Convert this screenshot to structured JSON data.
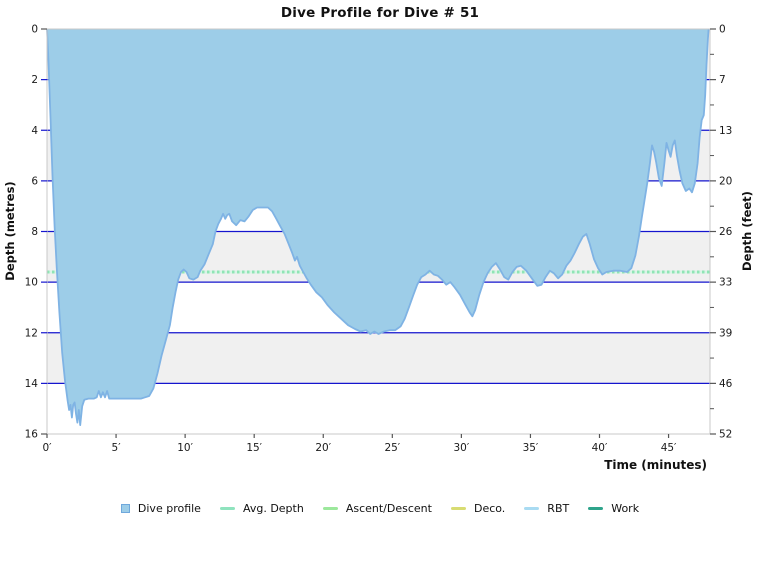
{
  "chart_data": {
    "type": "area",
    "title": "Dive Profile for Dive # 51",
    "xlabel": "Time (minutes)",
    "ylabel_left": "Depth (metres)",
    "ylabel_right": "Depth (feet)",
    "xlim": [
      0,
      48
    ],
    "ylim": [
      0,
      16
    ],
    "y_axis_inverted_note": "depth increases downward",
    "x_ticks": [
      0,
      5,
      10,
      15,
      20,
      25,
      30,
      35,
      40,
      45
    ],
    "x_tick_suffix": "′",
    "y_ticks_m": [
      0,
      2,
      4,
      6,
      8,
      10,
      12,
      14,
      16
    ],
    "y_tick_labels_feet": [
      "0",
      "7",
      "13",
      "20",
      "26",
      "33",
      "39",
      "46",
      "52"
    ],
    "y_minor_ticks_m": [
      1,
      3,
      5,
      7,
      9,
      11,
      13,
      15
    ],
    "grid_depths_m": [
      2,
      4,
      6,
      8,
      10,
      12,
      14
    ],
    "bands_m": [
      [
        0,
        2
      ],
      [
        4,
        6
      ],
      [
        8,
        10
      ],
      [
        12,
        14
      ]
    ],
    "avg_depth_m": 9.6,
    "max_depth_m": 15.7,
    "duration_min": 48,
    "colors": {
      "profile_fill": "#9DCDE8",
      "profile_stroke": "#7FB3E4",
      "grid_line": "#1515CE",
      "avg_depth_line": "#8FE5B5",
      "band_gray": "#F0F0F0",
      "plot_border": "#C9C9C9",
      "tick": "#555555"
    },
    "legend": [
      {
        "label": "Dive profile",
        "type": "area",
        "color": "#9DCDE8",
        "border": "#6FA8DC"
      },
      {
        "label": "Avg. Depth",
        "type": "line",
        "color": "#8FE3BE"
      },
      {
        "label": "Ascent/Descent",
        "type": "line",
        "color": "#9CE89C"
      },
      {
        "label": "Deco.",
        "type": "line",
        "color": "#D8DC72"
      },
      {
        "label": "RBT",
        "type": "line",
        "color": "#A9DBF2"
      },
      {
        "label": "Work",
        "type": "line",
        "color": "#2FA48B"
      }
    ],
    "profile_points": [
      [
        0,
        0
      ],
      [
        0.1,
        1.2
      ],
      [
        0.25,
        3.5
      ],
      [
        0.4,
        5.8
      ],
      [
        0.55,
        7.8
      ],
      [
        0.7,
        9.4
      ],
      [
        0.9,
        11.2
      ],
      [
        1.1,
        12.8
      ],
      [
        1.3,
        13.9
      ],
      [
        1.5,
        14.7
      ],
      [
        1.6,
        15.05
      ],
      [
        1.7,
        14.85
      ],
      [
        1.8,
        15.35
      ],
      [
        1.9,
        14.85
      ],
      [
        2.0,
        14.75
      ],
      [
        2.1,
        15.2
      ],
      [
        2.2,
        15.55
      ],
      [
        2.3,
        15.05
      ],
      [
        2.4,
        15.65
      ],
      [
        2.55,
        14.9
      ],
      [
        2.7,
        14.65
      ],
      [
        3.0,
        14.6
      ],
      [
        3.4,
        14.6
      ],
      [
        3.6,
        14.55
      ],
      [
        3.75,
        14.3
      ],
      [
        3.9,
        14.55
      ],
      [
        4.05,
        14.35
      ],
      [
        4.2,
        14.55
      ],
      [
        4.35,
        14.3
      ],
      [
        4.5,
        14.6
      ],
      [
        4.8,
        14.6
      ],
      [
        5.2,
        14.6
      ],
      [
        5.6,
        14.6
      ],
      [
        6.0,
        14.6
      ],
      [
        6.4,
        14.6
      ],
      [
        6.8,
        14.6
      ],
      [
        7.1,
        14.55
      ],
      [
        7.4,
        14.5
      ],
      [
        7.7,
        14.2
      ],
      [
        8.0,
        13.6
      ],
      [
        8.3,
        12.9
      ],
      [
        8.6,
        12.3
      ],
      [
        8.9,
        11.7
      ],
      [
        9.1,
        11.0
      ],
      [
        9.3,
        10.4
      ],
      [
        9.5,
        9.9
      ],
      [
        9.7,
        9.6
      ],
      [
        9.9,
        9.5
      ],
      [
        10.1,
        9.6
      ],
      [
        10.3,
        9.85
      ],
      [
        10.6,
        9.9
      ],
      [
        10.9,
        9.8
      ],
      [
        11.1,
        9.55
      ],
      [
        11.4,
        9.3
      ],
      [
        11.7,
        8.9
      ],
      [
        12.0,
        8.5
      ],
      [
        12.2,
        8.0
      ],
      [
        12.4,
        7.7
      ],
      [
        12.6,
        7.5
      ],
      [
        12.75,
        7.3
      ],
      [
        12.9,
        7.5
      ],
      [
        13.05,
        7.35
      ],
      [
        13.2,
        7.3
      ],
      [
        13.4,
        7.6
      ],
      [
        13.7,
        7.75
      ],
      [
        14.0,
        7.55
      ],
      [
        14.3,
        7.6
      ],
      [
        14.6,
        7.4
      ],
      [
        14.9,
        7.15
      ],
      [
        15.2,
        7.05
      ],
      [
        15.6,
        7.05
      ],
      [
        16.0,
        7.05
      ],
      [
        16.3,
        7.2
      ],
      [
        16.6,
        7.5
      ],
      [
        16.9,
        7.8
      ],
      [
        17.2,
        8.1
      ],
      [
        17.5,
        8.5
      ],
      [
        17.75,
        8.85
      ],
      [
        17.95,
        9.15
      ],
      [
        18.1,
        9.0
      ],
      [
        18.3,
        9.35
      ],
      [
        18.55,
        9.6
      ],
      [
        18.8,
        9.85
      ],
      [
        19.1,
        10.1
      ],
      [
        19.5,
        10.4
      ],
      [
        19.9,
        10.6
      ],
      [
        20.3,
        10.9
      ],
      [
        20.8,
        11.2
      ],
      [
        21.3,
        11.45
      ],
      [
        21.8,
        11.7
      ],
      [
        22.3,
        11.85
      ],
      [
        22.7,
        11.95
      ],
      [
        23.1,
        11.9
      ],
      [
        23.4,
        12.05
      ],
      [
        23.7,
        11.95
      ],
      [
        24.0,
        12.05
      ],
      [
        24.4,
        11.95
      ],
      [
        24.8,
        11.9
      ],
      [
        25.2,
        11.9
      ],
      [
        25.6,
        11.75
      ],
      [
        25.9,
        11.45
      ],
      [
        26.2,
        11.0
      ],
      [
        26.5,
        10.55
      ],
      [
        26.8,
        10.1
      ],
      [
        27.1,
        9.8
      ],
      [
        27.4,
        9.7
      ],
      [
        27.7,
        9.55
      ],
      [
        28.0,
        9.7
      ],
      [
        28.3,
        9.75
      ],
      [
        28.6,
        9.9
      ],
      [
        28.9,
        10.1
      ],
      [
        29.2,
        10.0
      ],
      [
        29.5,
        10.2
      ],
      [
        29.9,
        10.5
      ],
      [
        30.3,
        10.9
      ],
      [
        30.6,
        11.2
      ],
      [
        30.8,
        11.35
      ],
      [
        31.0,
        11.1
      ],
      [
        31.3,
        10.5
      ],
      [
        31.6,
        10.0
      ],
      [
        31.9,
        9.65
      ],
      [
        32.2,
        9.4
      ],
      [
        32.5,
        9.25
      ],
      [
        32.8,
        9.5
      ],
      [
        33.1,
        9.8
      ],
      [
        33.4,
        9.9
      ],
      [
        33.7,
        9.6
      ],
      [
        34.0,
        9.4
      ],
      [
        34.3,
        9.35
      ],
      [
        34.7,
        9.55
      ],
      [
        35.1,
        9.85
      ],
      [
        35.5,
        10.15
      ],
      [
        35.8,
        10.1
      ],
      [
        36.1,
        9.8
      ],
      [
        36.4,
        9.55
      ],
      [
        36.7,
        9.65
      ],
      [
        37.0,
        9.85
      ],
      [
        37.3,
        9.7
      ],
      [
        37.6,
        9.35
      ],
      [
        37.9,
        9.15
      ],
      [
        38.2,
        8.85
      ],
      [
        38.5,
        8.5
      ],
      [
        38.8,
        8.2
      ],
      [
        39.05,
        8.1
      ],
      [
        39.3,
        8.5
      ],
      [
        39.6,
        9.1
      ],
      [
        39.9,
        9.45
      ],
      [
        40.2,
        9.7
      ],
      [
        40.5,
        9.6
      ],
      [
        41.0,
        9.55
      ],
      [
        41.5,
        9.55
      ],
      [
        42.0,
        9.6
      ],
      [
        42.3,
        9.45
      ],
      [
        42.6,
        8.95
      ],
      [
        42.85,
        8.2
      ],
      [
        43.05,
        7.5
      ],
      [
        43.25,
        6.8
      ],
      [
        43.45,
        6.1
      ],
      [
        43.65,
        5.3
      ],
      [
        43.8,
        4.6
      ],
      [
        43.95,
        4.85
      ],
      [
        44.1,
        5.25
      ],
      [
        44.3,
        5.9
      ],
      [
        44.5,
        6.2
      ],
      [
        44.7,
        5.3
      ],
      [
        44.85,
        4.5
      ],
      [
        45.0,
        4.8
      ],
      [
        45.15,
        5.05
      ],
      [
        45.3,
        4.6
      ],
      [
        45.45,
        4.4
      ],
      [
        45.6,
        5.0
      ],
      [
        45.8,
        5.6
      ],
      [
        46.0,
        6.1
      ],
      [
        46.25,
        6.4
      ],
      [
        46.5,
        6.3
      ],
      [
        46.7,
        6.45
      ],
      [
        46.9,
        6.1
      ],
      [
        47.1,
        5.3
      ],
      [
        47.25,
        4.3
      ],
      [
        47.4,
        3.6
      ],
      [
        47.55,
        3.4
      ],
      [
        47.65,
        2.6
      ],
      [
        47.75,
        1.4
      ],
      [
        47.85,
        0.4
      ],
      [
        47.9,
        0
      ]
    ]
  }
}
